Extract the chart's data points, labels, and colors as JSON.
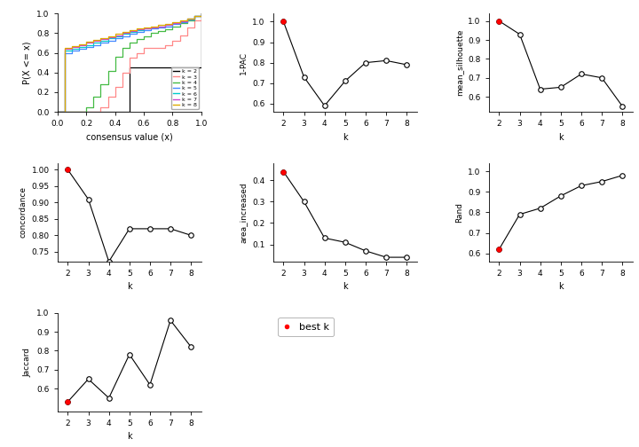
{
  "k_values": [
    2,
    3,
    4,
    5,
    6,
    7,
    8
  ],
  "pac_1minus": [
    1.0,
    0.73,
    0.59,
    0.71,
    0.8,
    0.81,
    0.79
  ],
  "mean_silhouette": [
    1.0,
    0.93,
    0.64,
    0.65,
    0.72,
    0.7,
    0.55
  ],
  "concordance": [
    1.0,
    0.91,
    0.72,
    0.82,
    0.82,
    0.82,
    0.8
  ],
  "area_increased": [
    0.44,
    0.3,
    0.13,
    0.11,
    0.07,
    0.04,
    0.04
  ],
  "rand": [
    0.62,
    0.79,
    0.82,
    0.88,
    0.93,
    0.95,
    0.98
  ],
  "jaccard": [
    0.53,
    0.65,
    0.55,
    0.78,
    0.62,
    0.96,
    0.82
  ],
  "best_k_idx": 0,
  "ecdf_colors": [
    "#000000",
    "#ff8888",
    "#44bb44",
    "#4488ff",
    "#00cccc",
    "#cc44cc",
    "#ddaa00"
  ],
  "ecdf_labels": [
    "k = 2",
    "k = 3",
    "k = 4",
    "k = 5",
    "k = 6",
    "k = 7",
    "k = 8"
  ],
  "bg_color": "#ffffff"
}
